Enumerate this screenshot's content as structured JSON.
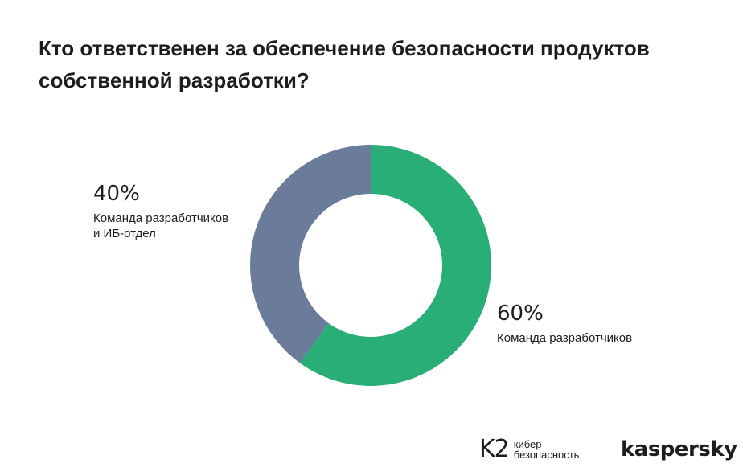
{
  "title_lines": [
    "Кто ответственен за обеспечение безопасности продуктов",
    "собственной разработки?"
  ],
  "chart_data": {
    "type": "pie",
    "donut": true,
    "categories": [
      "Команда разработчиков",
      "Команда разработчиков и ИБ-отдел"
    ],
    "values": [
      60,
      40
    ],
    "colors": [
      "#2aae77",
      "#6b7b9a"
    ],
    "labels": [
      {
        "percent": "60%",
        "desc_lines": [
          "Команда разработчиков"
        ]
      },
      {
        "percent": "40%",
        "desc_lines": [
          "Команда разработчиков",
          "и ИБ-отдел"
        ]
      }
    ]
  },
  "branding": {
    "k2_mark": "K2",
    "k2_text_lines": [
      "кибер",
      "безопасность"
    ],
    "kaspersky": "kaspersky"
  }
}
